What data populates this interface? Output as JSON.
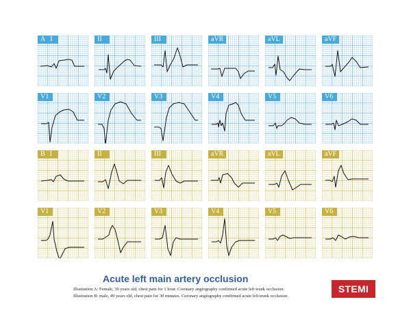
{
  "sets": [
    {
      "id": "A",
      "letter": "A",
      "grid_color": "#8fc8ea",
      "grid_major_color": "#5aa8d8",
      "tag_color": "#47a9dc",
      "leads": [
        "I",
        "II",
        "III",
        "aVR",
        "aVL",
        "aVF",
        "V1",
        "V2",
        "V3",
        "V4",
        "V5",
        "V6"
      ]
    },
    {
      "id": "B",
      "letter": "B",
      "grid_color": "#ddd28a",
      "grid_major_color": "#c7b142",
      "tag_color": "#c7b142",
      "leads": [
        "I",
        "II",
        "III",
        "aVR",
        "aVL",
        "aVF",
        "V1",
        "V2",
        "V3",
        "V4",
        "V5",
        "V6"
      ]
    }
  ],
  "title": "Acute left main artery occlusion",
  "notes": {
    "a": "Illustration A: Female, 39 years old, chest pain for 1 hour. Coronary angiography confirmed acute left trunk occlusion.",
    "b": "Illustration B: male, 49 years old, chest pain for 30 minutes. Coronary angiography confirmed acute left trunk occlusion."
  },
  "badge": "STEMI",
  "colors": {
    "title": "#2f5d9b",
    "badge": "#c7262c",
    "trace": "#111111"
  }
}
